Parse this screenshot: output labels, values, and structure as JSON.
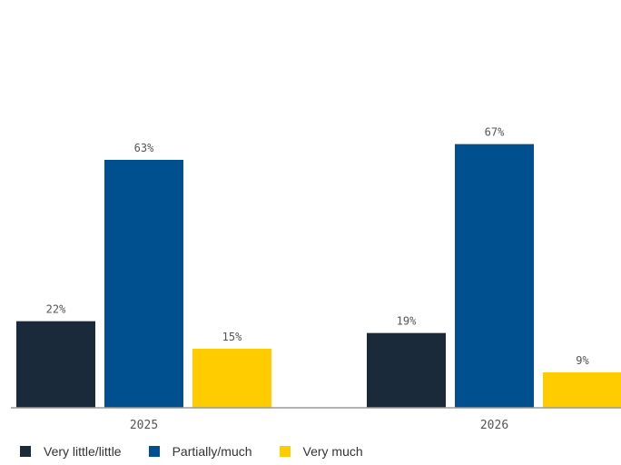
{
  "chart_data": {
    "type": "bar",
    "title": "",
    "categories": [
      "2025",
      "2026"
    ],
    "series": [
      {
        "name": "Very little/little",
        "color": "#1b2a3b",
        "values": [
          22,
          19
        ],
        "labels": [
          "22%",
          "19%"
        ]
      },
      {
        "name": "Partially/much",
        "color": "#00508f",
        "values": [
          63,
          67
        ],
        "labels": [
          "63%",
          "67%"
        ]
      },
      {
        "name": "Very much",
        "color": "#ffcc00",
        "values": [
          15,
          9
        ],
        "labels": [
          "15%",
          "9%"
        ]
      }
    ],
    "ylim": [
      0,
      75
    ],
    "grid": false,
    "legend_position": "bottom-left",
    "xlabel": "",
    "ylabel": ""
  }
}
